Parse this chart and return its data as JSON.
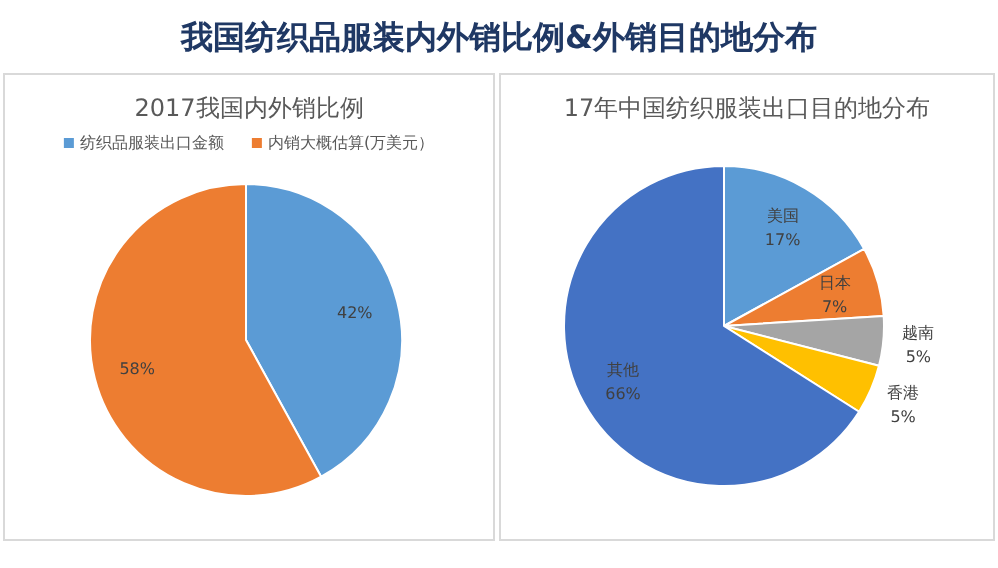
{
  "chart_data": [
    {
      "type": "other",
      "title": "我国纺织品服装内外销比例&外销目的地分布"
    },
    {
      "type": "pie",
      "title": "2017我国内外销比例",
      "categories": [
        "纺织品服装出口金额",
        "内销大概估算(万美元）"
      ],
      "values": [
        42,
        58
      ],
      "colors": [
        "#5b9bd5",
        "#ed7d31"
      ],
      "value_labels": [
        "42%",
        "58%"
      ],
      "legend": "top"
    },
    {
      "type": "pie",
      "title": "17年中国纺织服装出口目的地分布",
      "categories": [
        "美国",
        "日本",
        "越南",
        "香港",
        "其他"
      ],
      "values": [
        17,
        7,
        5,
        5,
        66
      ],
      "colors": [
        "#5b9bd5",
        "#ed7d31",
        "#a5a5a5",
        "#ffc000",
        "#4472c4"
      ],
      "value_labels": [
        "17%",
        "7%",
        "5%",
        "5%",
        "66%"
      ],
      "legend": false
    }
  ]
}
